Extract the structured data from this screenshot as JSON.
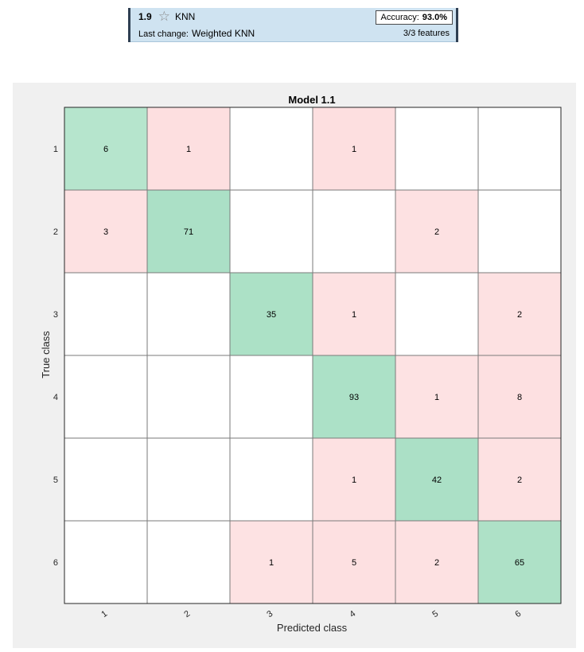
{
  "model_card": {
    "number": "1.9",
    "name": "KNN",
    "accuracy_label": "Accuracy:",
    "accuracy_value": "93.0%",
    "last_change_label": "Last change:",
    "last_change_value": "Weighted KNN",
    "features": "3/3 features",
    "favorite_icon": "star-outline-icon"
  },
  "chart_data": {
    "type": "heatmap",
    "title": "Model 1.1",
    "xlabel": "Predicted class",
    "ylabel": "True class",
    "x_categories": [
      "1",
      "2",
      "3",
      "4",
      "5",
      "6"
    ],
    "y_categories": [
      "1",
      "2",
      "3",
      "4",
      "5",
      "6"
    ],
    "values": [
      [
        6,
        1,
        0,
        1,
        0,
        0
      ],
      [
        3,
        71,
        0,
        0,
        2,
        0
      ],
      [
        0,
        0,
        35,
        1,
        0,
        2
      ],
      [
        0,
        0,
        0,
        93,
        1,
        8
      ],
      [
        0,
        0,
        0,
        1,
        42,
        2
      ],
      [
        0,
        0,
        1,
        5,
        2,
        65
      ]
    ],
    "colors": {
      "correct": "#e3f5ec",
      "correct_strong": "#a7dfc3",
      "error": "#fde2e3",
      "error_strong": "#fcd9db",
      "empty": "#ffffff",
      "grid": "#7a7a7a",
      "background": "#f0f0f0"
    }
  }
}
